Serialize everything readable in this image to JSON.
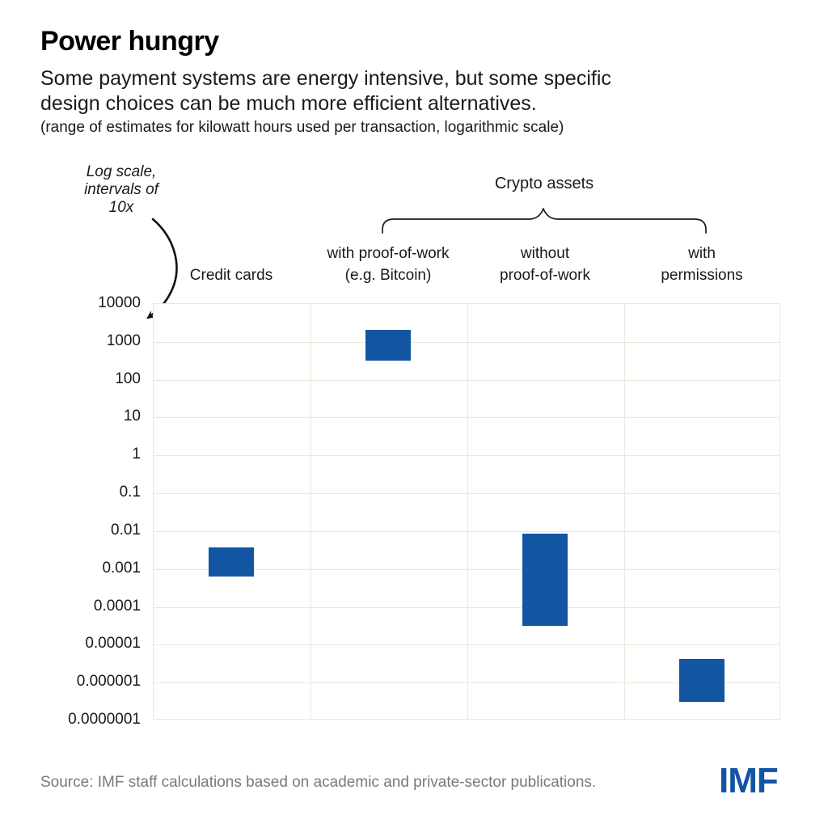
{
  "header": {
    "title": "Power hungry",
    "subtitle_lines": [
      "Some payment systems are energy intensive, but some specific",
      "design choices can be much more efficient alternatives."
    ],
    "note": "(range of estimates for kilowatt hours used per transaction, logarithmic scale)"
  },
  "annotation": {
    "lines": [
      "Log scale,",
      "intervals of",
      "10x"
    ]
  },
  "group_label": "Crypto assets",
  "column_headers": [
    {
      "lines": [
        "Credit cards"
      ]
    },
    {
      "lines": [
        "with proof-of-work",
        "(e.g. Bitcoin)"
      ]
    },
    {
      "lines": [
        "without",
        "proof-of-work"
      ]
    },
    {
      "lines": [
        "with",
        "permissions"
      ]
    }
  ],
  "chart_data": {
    "type": "bar",
    "subtype": "floating-range-bars",
    "title": "Power hungry",
    "ylabel": "kilowatt hours used per transaction",
    "scale": "log10",
    "ylim": [
      1e-07,
      10000
    ],
    "grid": "on",
    "ticks": [
      "10000",
      "1000",
      "100",
      "10",
      "1",
      "0.1",
      "0.01",
      "0.001",
      "0.0001",
      "0.00001",
      "0.000001",
      "0.0000001"
    ],
    "categories": [
      "Credit cards",
      "Crypto assets with proof-of-work (e.g. Bitcoin)",
      "Crypto assets without proof-of-work",
      "Crypto assets with permissions"
    ],
    "series": [
      {
        "name": "Credit cards",
        "low": 0.0006,
        "high": 0.0035
      },
      {
        "name": "Crypto assets with proof-of-work (e.g. Bitcoin)",
        "low": 300,
        "high": 2000
      },
      {
        "name": "Crypto assets without proof-of-work",
        "low": 3e-05,
        "high": 0.008
      },
      {
        "name": "Crypto assets with permissions",
        "low": 3e-07,
        "high": 4e-06
      }
    ]
  },
  "footer": {
    "source": "Source: IMF staff calculations based on academic and private-sector publications.",
    "logo": "IMF"
  },
  "colors": {
    "bar": "#1155a3",
    "grid": "#eae8dc",
    "logo": "#1155a3",
    "source_text": "#7a7a7a"
  }
}
